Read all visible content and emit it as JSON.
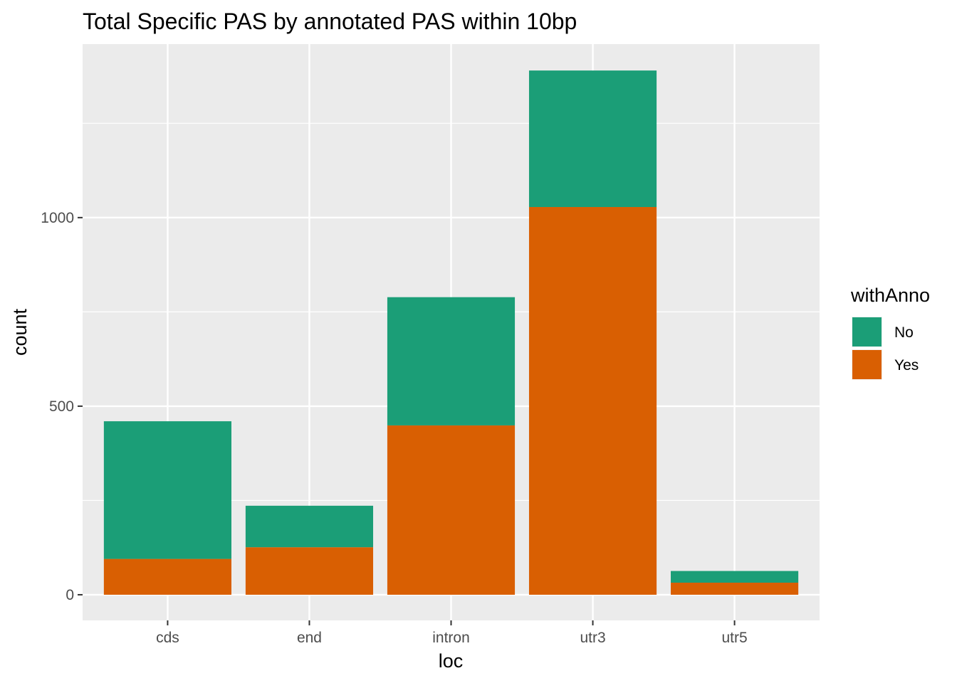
{
  "chart_data": {
    "type": "bar",
    "stacked": true,
    "title": "Total  Specific PAS by annotated PAS within 10bp",
    "xlabel": "loc",
    "ylabel": "count",
    "categories": [
      "cds",
      "end",
      "intron",
      "utr3",
      "utr5"
    ],
    "series": [
      {
        "name": "Yes",
        "color": "#d95f02",
        "values": [
          95,
          126,
          449,
          1028,
          32
        ]
      },
      {
        "name": "No",
        "color": "#1b9e77",
        "values": [
          365,
          110,
          340,
          362,
          31
        ]
      }
    ],
    "ylim": [
      -68,
      1460
    ],
    "yticks": [
      0,
      500,
      1000
    ],
    "ytick_labels": [
      "0",
      "500",
      "1000"
    ],
    "grid": true,
    "panel_background": "#ebebeb",
    "legend": {
      "title": "withAnno",
      "placement": "right",
      "entries": [
        {
          "label": "No",
          "color": "#1b9e77"
        },
        {
          "label": "Yes",
          "color": "#d95f02"
        }
      ]
    }
  }
}
